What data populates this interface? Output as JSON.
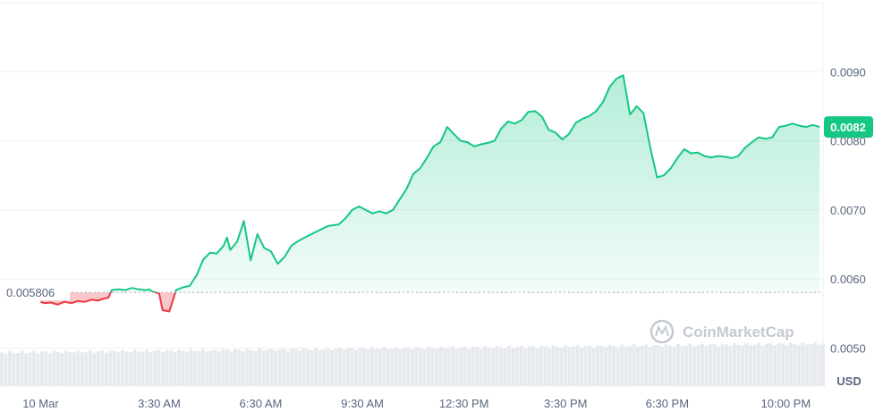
{
  "chart_data": {
    "type": "area",
    "currency_label": "USD",
    "watermark": "CoinMarketCap",
    "reference_value": 0.005806,
    "reference_label": "0.005806",
    "current_value": 0.0082,
    "current_label": "0.0082",
    "ylim": [
      0.00445,
      0.01
    ],
    "y_ticks": [
      {
        "value": 0.009,
        "label": "0.0090"
      },
      {
        "value": 0.008,
        "label": "0.0080"
      },
      {
        "value": 0.007,
        "label": "0.0070"
      },
      {
        "value": 0.006,
        "label": "0.0060"
      },
      {
        "value": 0.005,
        "label": "0.0050"
      }
    ],
    "xlim": [
      -1.2,
      23.1
    ],
    "x_ticks": [
      {
        "value": 0,
        "label": "10 Mar"
      },
      {
        "value": 3.5,
        "label": "3:30 AM"
      },
      {
        "value": 6.5,
        "label": "6:30 AM"
      },
      {
        "value": 9.5,
        "label": "9:30 AM"
      },
      {
        "value": 12.5,
        "label": "12:30 PM"
      },
      {
        "value": 15.5,
        "label": "3:30 PM"
      },
      {
        "value": 18.5,
        "label": "6:30 PM"
      },
      {
        "value": 22,
        "label": "10:00 PM"
      }
    ],
    "colors": {
      "up": "#16c784",
      "down": "#ea3943",
      "grid": "#eff2f5",
      "volume": "#e6e9ed",
      "reference": "#a6b0c3"
    },
    "x": [
      0,
      0.1,
      0.3,
      0.5,
      0.7,
      0.9,
      1.1,
      1.3,
      1.5,
      1.7,
      1.9,
      2.0,
      2.1,
      2.3,
      2.5,
      2.7,
      2.9,
      3.1,
      3.2,
      3.3,
      3.5,
      3.6,
      3.8,
      4.0,
      4.2,
      4.4,
      4.6,
      4.8,
      5.0,
      5.2,
      5.4,
      5.5,
      5.6,
      5.8,
      6.0,
      6.2,
      6.4,
      6.6,
      6.8,
      7.0,
      7.2,
      7.4,
      7.6,
      7.8,
      8.0,
      8.2,
      8.5,
      8.8,
      9.0,
      9.2,
      9.4,
      9.6,
      9.8,
      10.0,
      10.2,
      10.4,
      10.6,
      10.8,
      11.0,
      11.2,
      11.4,
      11.6,
      11.8,
      12.0,
      12.2,
      12.4,
      12.6,
      12.8,
      13.0,
      13.2,
      13.4,
      13.6,
      13.8,
      14.0,
      14.2,
      14.4,
      14.6,
      14.8,
      15.0,
      15.2,
      15.4,
      15.6,
      15.8,
      16.0,
      16.2,
      16.4,
      16.6,
      16.8,
      17.0,
      17.2,
      17.4,
      17.6,
      17.8,
      18.0,
      18.2,
      18.4,
      18.6,
      18.8,
      19.0,
      19.2,
      19.4,
      19.6,
      19.8,
      20.0,
      20.2,
      20.4,
      20.6,
      20.8,
      21.0,
      21.2,
      21.4,
      21.6,
      21.8,
      22.0,
      22.2,
      22.4,
      22.6,
      22.8,
      23.0
    ],
    "y": [
      0.00567,
      0.00565,
      0.00566,
      0.00563,
      0.00567,
      0.00565,
      0.00568,
      0.00567,
      0.0057,
      0.00569,
      0.00572,
      0.00573,
      0.00584,
      0.00585,
      0.00584,
      0.00587,
      0.00585,
      0.00584,
      0.00585,
      0.00582,
      0.00579,
      0.00555,
      0.00553,
      0.00584,
      0.00588,
      0.0059,
      0.00605,
      0.00628,
      0.00638,
      0.00637,
      0.00648,
      0.0066,
      0.00642,
      0.00654,
      0.00684,
      0.00627,
      0.00665,
      0.00645,
      0.0064,
      0.00622,
      0.00632,
      0.00648,
      0.00655,
      0.0066,
      0.00665,
      0.0067,
      0.00677,
      0.00679,
      0.00688,
      0.007,
      0.00705,
      0.007,
      0.00695,
      0.00698,
      0.00695,
      0.007,
      0.00715,
      0.0073,
      0.00752,
      0.0076,
      0.00775,
      0.00792,
      0.00798,
      0.0082,
      0.0081,
      0.008,
      0.00798,
      0.00792,
      0.00795,
      0.00797,
      0.008,
      0.00818,
      0.00828,
      0.00825,
      0.0083,
      0.00842,
      0.00843,
      0.00835,
      0.00816,
      0.00812,
      0.00802,
      0.0081,
      0.00826,
      0.00832,
      0.00836,
      0.00843,
      0.00856,
      0.00878,
      0.0089,
      0.00895,
      0.00838,
      0.0085,
      0.0084,
      0.0079,
      0.00747,
      0.0075,
      0.0076,
      0.00775,
      0.00788,
      0.00782,
      0.00783,
      0.00778,
      0.00776,
      0.00778,
      0.00777,
      0.00775,
      0.00778,
      0.0079,
      0.00798,
      0.00805,
      0.00803,
      0.00805,
      0.0082,
      0.00822,
      0.00825,
      0.00822,
      0.0082,
      0.00823,
      0.0082
    ]
  }
}
